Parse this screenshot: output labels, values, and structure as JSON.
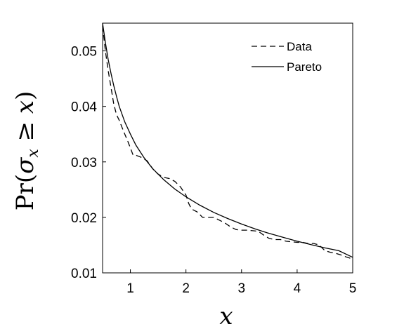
{
  "chart_data": {
    "type": "line",
    "xlabel": "x",
    "ylabel": "Pr(σx ≥ x)",
    "ylabel_parts": {
      "prefix": "Pr(",
      "sigma": "σ",
      "sub": "x",
      "rel": " ≥ ",
      "var": "x",
      "suffix": ")"
    },
    "xlim": [
      0.5,
      5
    ],
    "ylim": [
      0.01,
      0.055
    ],
    "xticks": [
      1,
      2,
      3,
      4,
      5
    ],
    "xtick_labels": [
      "1",
      "2",
      "3",
      "4",
      "5"
    ],
    "yticks": [
      0.01,
      0.02,
      0.03,
      0.04,
      0.05
    ],
    "ytick_labels": [
      "0.01",
      "0.02",
      "0.03",
      "0.04",
      "0.05"
    ],
    "grid": false,
    "legend_position": "top-right",
    "series": [
      {
        "name": "Data",
        "style": "dashed",
        "color": "#000000",
        "x": [
          0.5,
          0.55,
          0.6,
          0.65,
          0.7,
          0.75,
          0.8,
          0.85,
          0.9,
          0.95,
          1.0,
          1.05,
          1.1,
          1.2,
          1.3,
          1.4,
          1.45,
          1.5,
          1.6,
          1.7,
          1.8,
          1.9,
          2.0,
          2.05,
          2.1,
          2.2,
          2.3,
          2.4,
          2.5,
          2.6,
          2.7,
          2.8,
          2.9,
          3.0,
          3.1,
          3.2,
          3.3,
          3.4,
          3.5,
          3.6,
          3.7,
          3.8,
          3.9,
          4.0,
          4.1,
          4.2,
          4.3,
          4.4,
          4.5,
          4.6,
          4.7,
          4.8,
          4.9,
          5.0
        ],
        "y": [
          0.0545,
          0.05,
          0.0465,
          0.0435,
          0.0405,
          0.0385,
          0.0375,
          0.0362,
          0.035,
          0.0338,
          0.0325,
          0.0312,
          0.0312,
          0.0308,
          0.0302,
          0.0288,
          0.0282,
          0.0278,
          0.0272,
          0.027,
          0.0265,
          0.0255,
          0.024,
          0.0225,
          0.0215,
          0.021,
          0.02,
          0.02,
          0.02,
          0.0195,
          0.019,
          0.0183,
          0.0178,
          0.0177,
          0.0177,
          0.0176,
          0.0175,
          0.0168,
          0.0162,
          0.016,
          0.016,
          0.0157,
          0.0156,
          0.0155,
          0.0155,
          0.0153,
          0.0153,
          0.015,
          0.014,
          0.0137,
          0.0135,
          0.0132,
          0.0128,
          0.0125
        ]
      },
      {
        "name": "Pareto",
        "style": "solid",
        "color": "#000000",
        "x": [
          0.5,
          0.55,
          0.6,
          0.65,
          0.7,
          0.75,
          0.8,
          0.9,
          1.0,
          1.1,
          1.25,
          1.4,
          1.6,
          1.8,
          2.0,
          2.25,
          2.5,
          2.75,
          3.0,
          3.25,
          3.5,
          3.75,
          4.0,
          4.25,
          4.5,
          4.75,
          5.0
        ],
        "y": [
          0.055,
          0.0515,
          0.0485,
          0.046,
          0.0438,
          0.0418,
          0.04,
          0.0372,
          0.035,
          0.033,
          0.0307,
          0.0288,
          0.0268,
          0.0251,
          0.0237,
          0.0222,
          0.0209,
          0.0198,
          0.0188,
          0.0179,
          0.0171,
          0.0164,
          0.0157,
          0.0151,
          0.0145,
          0.014,
          0.0128
        ]
      }
    ]
  }
}
